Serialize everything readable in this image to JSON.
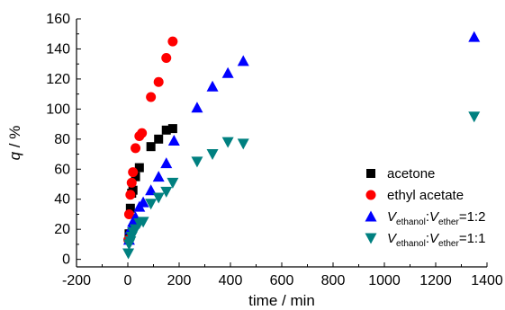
{
  "chart_data": {
    "type": "scatter",
    "xlabel": "time / min",
    "ylabel_main": "q",
    "ylabel_unit": " / %",
    "xlim": [
      -200,
      1400
    ],
    "ylim": [
      -5,
      160
    ],
    "xticks": [
      -200,
      0,
      200,
      400,
      600,
      800,
      1000,
      1200,
      1400
    ],
    "yticks": [
      0,
      20,
      40,
      60,
      80,
      100,
      120,
      140,
      160
    ],
    "grid": false,
    "legend_position": "right",
    "series": [
      {
        "name": "acetone",
        "marker": "square",
        "color": "#000000",
        "x": [
          5,
          10,
          15,
          20,
          30,
          45,
          90,
          120,
          150,
          175
        ],
        "y": [
          17,
          34,
          44,
          46,
          55,
          61,
          75,
          80,
          86,
          87
        ]
      },
      {
        "name": "ethyl acetate",
        "marker": "circle",
        "color": "#ff0000",
        "x": [
          2,
          5,
          10,
          15,
          20,
          30,
          45,
          55,
          90,
          120,
          150,
          175
        ],
        "y": [
          13,
          30,
          43,
          51,
          58,
          74,
          82,
          84,
          108,
          118,
          134,
          145
        ]
      },
      {
        "name_prefix": "V",
        "name_sub1": "ethanol",
        "name_mid": ":V",
        "name_sub2": "ether",
        "name_suffix": "=1:2",
        "marker": "triangle-up",
        "color": "#0000ff",
        "x": [
          5,
          10,
          20,
          30,
          45,
          60,
          90,
          120,
          150,
          180,
          270,
          330,
          390,
          450,
          1350
        ],
        "y": [
          13,
          20,
          25,
          28,
          35,
          38,
          46,
          55,
          64,
          79,
          101,
          115,
          124,
          132,
          148
        ]
      },
      {
        "name_prefix": "V",
        "name_sub1": "ethanol",
        "name_mid": ":V",
        "name_sub2": "ether",
        "name_suffix": "=1:1",
        "marker": "triangle-down",
        "color": "#008080",
        "x": [
          2,
          5,
          10,
          15,
          20,
          30,
          45,
          60,
          90,
          120,
          150,
          175,
          270,
          330,
          390,
          450,
          1350
        ],
        "y": [
          4,
          10,
          12,
          15,
          18,
          20,
          24,
          25,
          37,
          41,
          45,
          51,
          65,
          70,
          78,
          77,
          95
        ]
      }
    ]
  }
}
